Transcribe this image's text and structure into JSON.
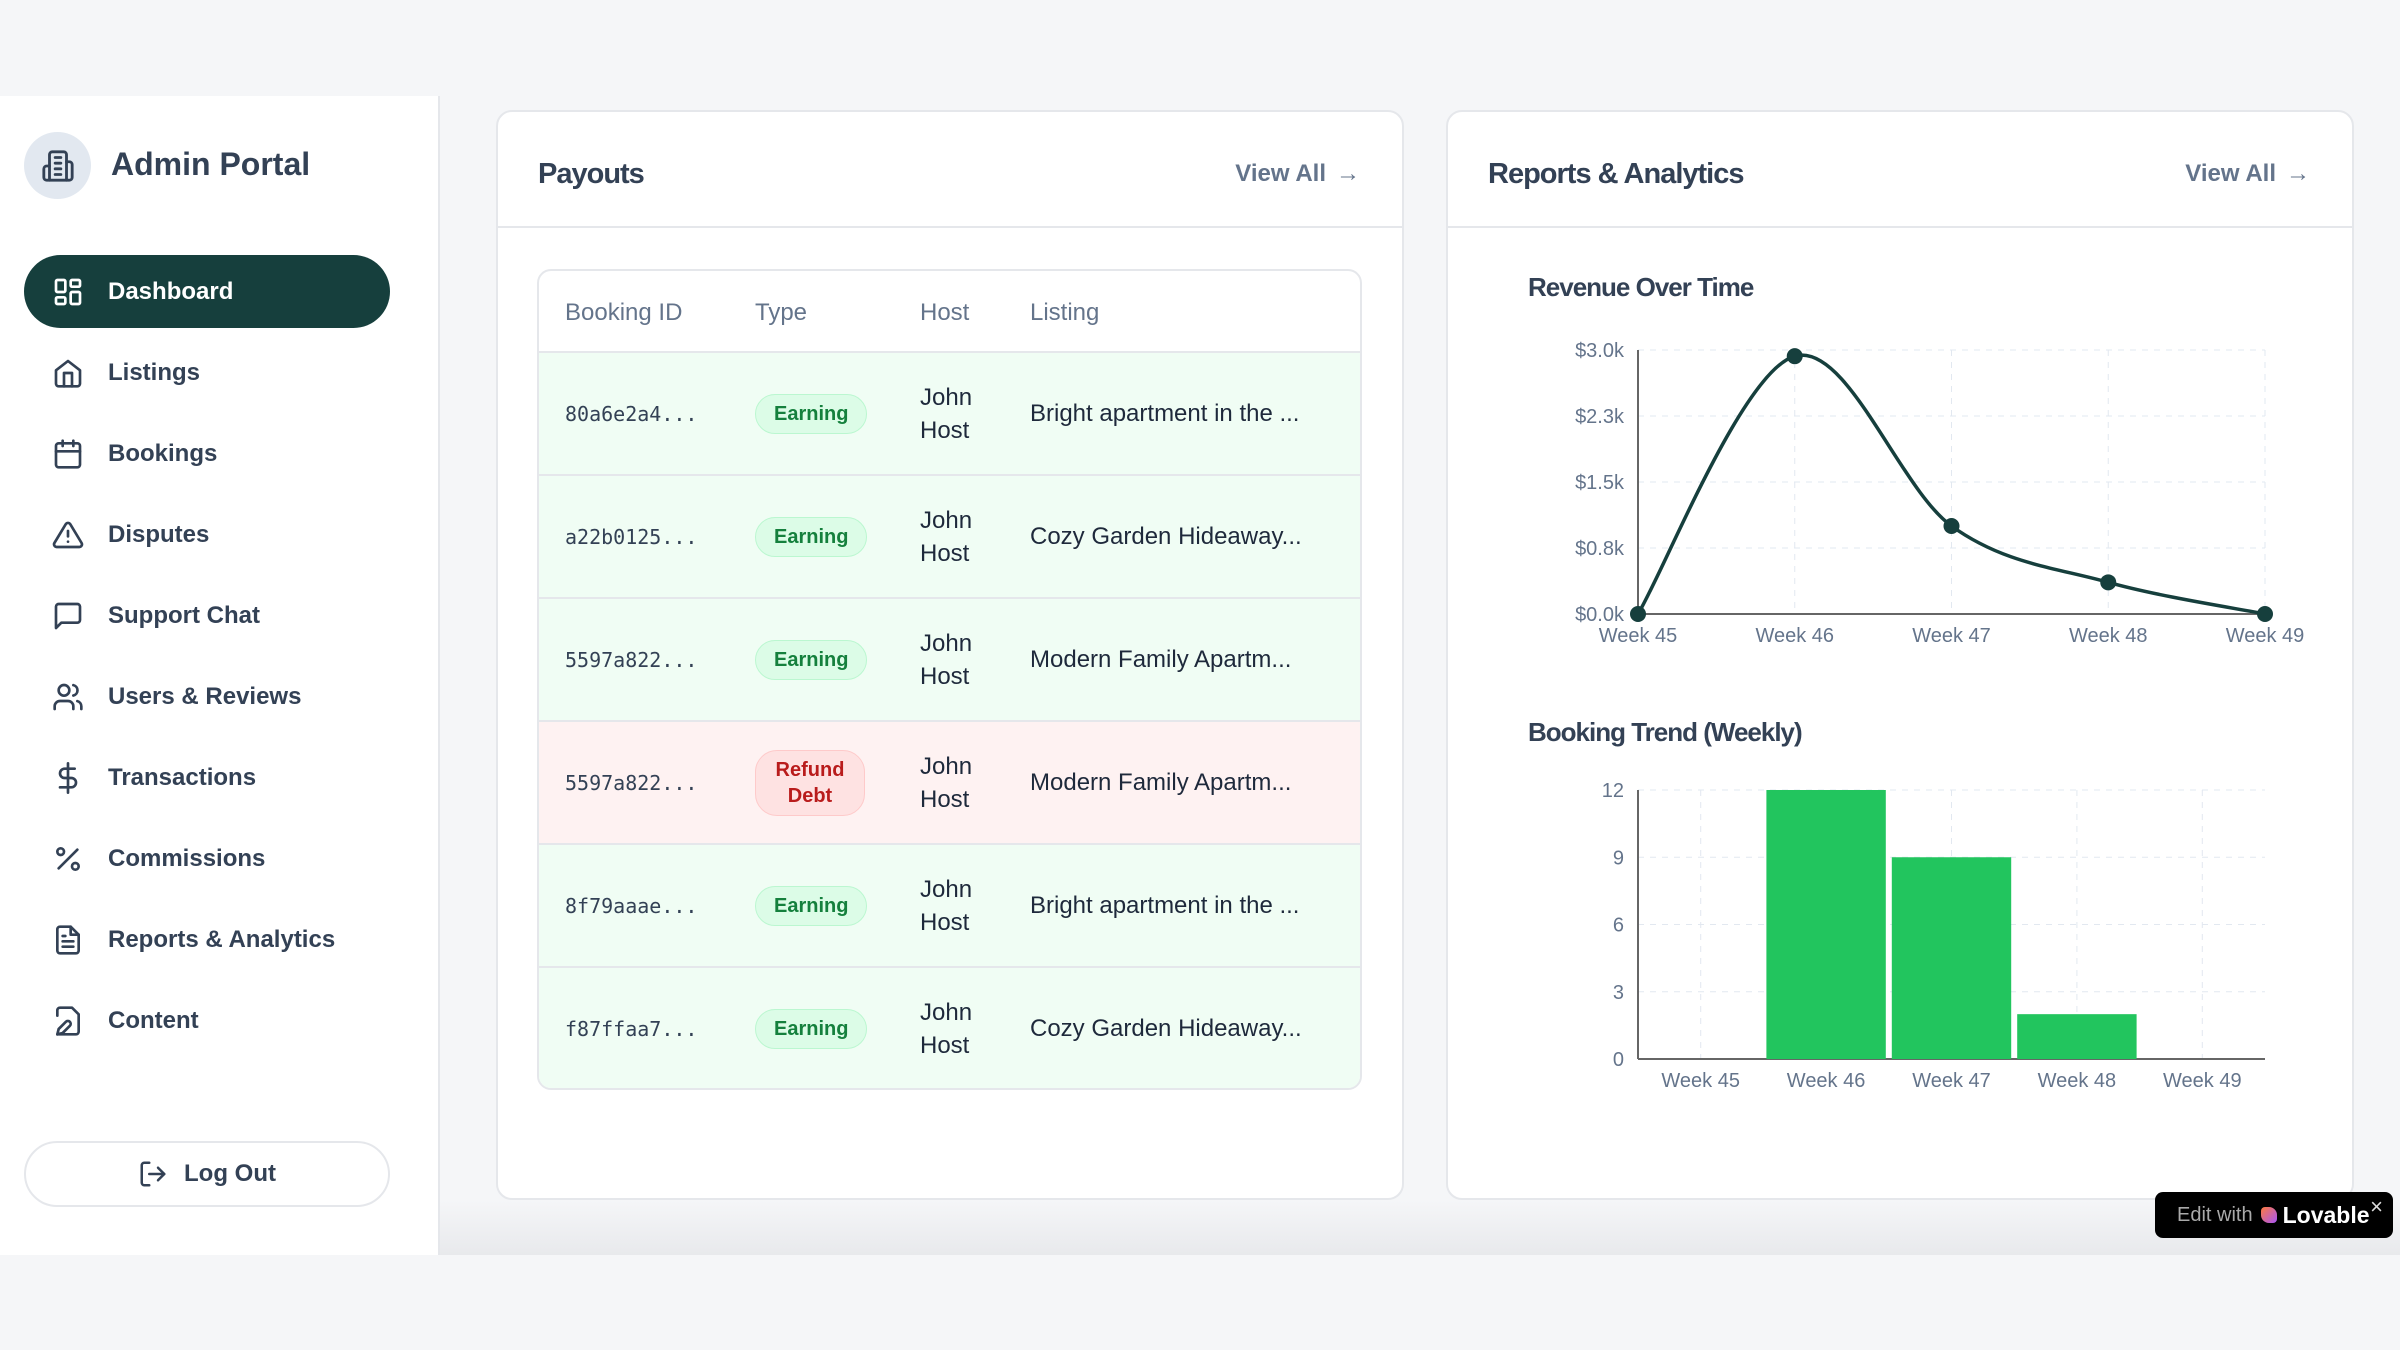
{
  "sidebar": {
    "brand": "Admin Portal",
    "items": [
      {
        "label": "Dashboard",
        "icon": "layout-grid-icon",
        "active": true
      },
      {
        "label": "Listings",
        "icon": "home-icon"
      },
      {
        "label": "Bookings",
        "icon": "calendar-icon"
      },
      {
        "label": "Disputes",
        "icon": "alert-triangle-icon"
      },
      {
        "label": "Support Chat",
        "icon": "message-square-icon"
      },
      {
        "label": "Users & Reviews",
        "icon": "users-icon"
      },
      {
        "label": "Transactions",
        "icon": "dollar-icon"
      },
      {
        "label": "Commissions",
        "icon": "percent-icon"
      },
      {
        "label": "Reports & Analytics",
        "icon": "file-text-icon"
      },
      {
        "label": "Content",
        "icon": "edit-file-icon"
      }
    ],
    "logout": "Log Out"
  },
  "payouts": {
    "title": "Payouts",
    "view_all": "View All",
    "columns": [
      "Booking ID",
      "Type",
      "Host",
      "Listing"
    ],
    "rows": [
      {
        "id": "80a6e2a4...",
        "type": "Earning",
        "host_first": "John",
        "host_last": "Host",
        "listing": "Bright apartment in the ..."
      },
      {
        "id": "a22b0125...",
        "type": "Earning",
        "host_first": "John",
        "host_last": "Host",
        "listing": "Cozy Garden Hideaway..."
      },
      {
        "id": "5597a822...",
        "type": "Earning",
        "host_first": "John",
        "host_last": "Host",
        "listing": "Modern Family Apartm..."
      },
      {
        "id": "5597a822...",
        "type": "Refund Debt",
        "host_first": "John",
        "host_last": "Host",
        "listing": "Modern Family Apartm..."
      },
      {
        "id": "8f79aaae...",
        "type": "Earning",
        "host_first": "John",
        "host_last": "Host",
        "listing": "Bright apartment in the ..."
      },
      {
        "id": "f87ffaa7...",
        "type": "Earning",
        "host_first": "John",
        "host_last": "Host",
        "listing": "Cozy Garden Hideaway..."
      }
    ]
  },
  "reports": {
    "title": "Reports & Analytics",
    "view_all": "View All"
  },
  "chart_data": [
    {
      "type": "line",
      "title": "Revenue Over Time",
      "categories": [
        "Week 45",
        "Week 46",
        "Week 47",
        "Week 48",
        "Week 49"
      ],
      "values": [
        0,
        2930,
        1000,
        360,
        0
      ],
      "ylim": [
        0,
        3000
      ],
      "yticks": [
        "$0.0k",
        "$0.8k",
        "$1.5k",
        "$2.3k",
        "$3.0k"
      ],
      "grid": true,
      "color": "#163f3d"
    },
    {
      "type": "bar",
      "title": "Booking Trend (Weekly)",
      "categories": [
        "Week 45",
        "Week 46",
        "Week 47",
        "Week 48",
        "Week 49"
      ],
      "values": [
        0,
        12,
        9,
        2,
        0
      ],
      "ylim": [
        0,
        12
      ],
      "yticks": [
        "0",
        "3",
        "6",
        "9",
        "12"
      ],
      "grid": true,
      "color": "#22c55e"
    }
  ],
  "badge": {
    "prefix": "Edit with",
    "brand": "Lovable",
    "close": "×"
  }
}
